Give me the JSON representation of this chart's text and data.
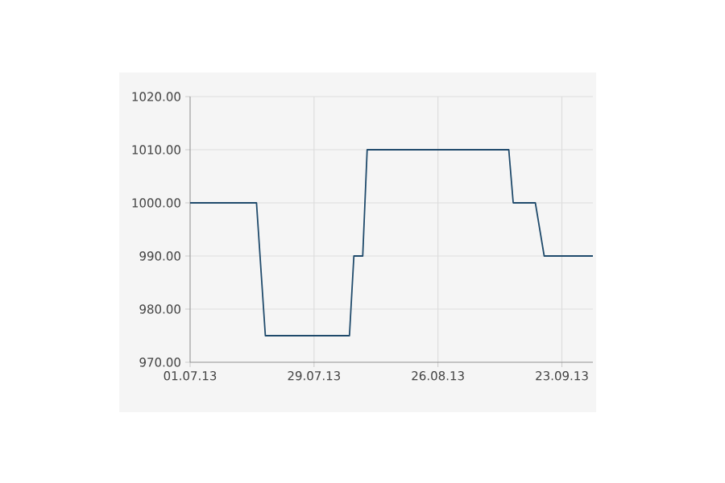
{
  "chart_data": {
    "type": "line",
    "x": [
      "2013-07-01",
      "2013-07-16",
      "2013-07-18",
      "2013-08-06",
      "2013-08-07",
      "2013-08-09",
      "2013-08-10",
      "2013-09-11",
      "2013-09-12",
      "2013-09-17",
      "2013-09-19",
      "2013-09-30"
    ],
    "series": [
      {
        "color": "#1f4a6b",
        "values": [
          1000,
          1000,
          975,
          975,
          990,
          990,
          1010,
          1010,
          1000,
          1000,
          990,
          990
        ]
      }
    ],
    "xlim": [
      "2013-07-01",
      "2013-09-30"
    ],
    "xticks": [
      {
        "value": "2013-07-01",
        "label": "01.07.13"
      },
      {
        "value": "2013-07-29",
        "label": "29.07.13"
      },
      {
        "value": "2013-08-26",
        "label": "26.08.13"
      },
      {
        "value": "2013-09-23",
        "label": "23.09.13"
      }
    ],
    "ylim": [
      970,
      1020
    ],
    "yticks": [
      {
        "value": 970,
        "label": "970.00"
      },
      {
        "value": 980,
        "label": "980.00"
      },
      {
        "value": 990,
        "label": "990.00"
      },
      {
        "value": 1000,
        "label": "1000.00"
      },
      {
        "value": 1010,
        "label": "1010.00"
      },
      {
        "value": 1020,
        "label": "1020.00"
      }
    ],
    "grid": true,
    "marker": "none",
    "line_style": "solid"
  }
}
